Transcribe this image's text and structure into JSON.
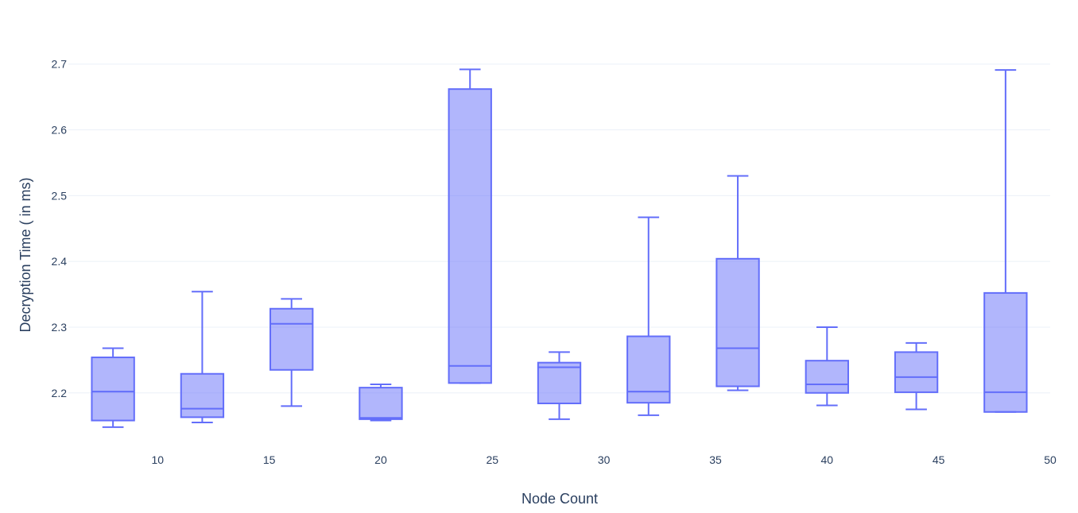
{
  "chart_data": {
    "type": "box",
    "xlabel": "Node Count",
    "ylabel": "Decryption Time ( in ms)",
    "xlim": [
      6,
      50
    ],
    "ylim": [
      2.12,
      2.725
    ],
    "x_ticks": [
      10,
      15,
      20,
      25,
      30,
      35,
      40,
      45,
      50
    ],
    "y_ticks": [
      2.2,
      2.3,
      2.4,
      2.5,
      2.6,
      2.7
    ],
    "grid": true,
    "color": "#636efa",
    "boxes": [
      {
        "x": 8,
        "min": 2.148,
        "q1": 2.158,
        "median": 2.202,
        "q3": 2.254,
        "max": 2.268
      },
      {
        "x": 12,
        "min": 2.155,
        "q1": 2.163,
        "median": 2.176,
        "q3": 2.229,
        "max": 2.354
      },
      {
        "x": 16,
        "min": 2.18,
        "q1": 2.235,
        "median": 2.305,
        "q3": 2.328,
        "max": 2.343
      },
      {
        "x": 20,
        "min": 2.158,
        "q1": 2.16,
        "median": 2.162,
        "q3": 2.208,
        "max": 2.213
      },
      {
        "x": 24,
        "min": 2.215,
        "q1": 2.215,
        "median": 2.241,
        "q3": 2.662,
        "max": 2.692
      },
      {
        "x": 28,
        "min": 2.16,
        "q1": 2.184,
        "median": 2.239,
        "q3": 2.246,
        "max": 2.262
      },
      {
        "x": 32,
        "min": 2.166,
        "q1": 2.185,
        "median": 2.202,
        "q3": 2.286,
        "max": 2.467
      },
      {
        "x": 36,
        "min": 2.204,
        "q1": 2.21,
        "median": 2.268,
        "q3": 2.404,
        "max": 2.53
      },
      {
        "x": 40,
        "min": 2.181,
        "q1": 2.2,
        "median": 2.213,
        "q3": 2.249,
        "max": 2.3
      },
      {
        "x": 44,
        "min": 2.175,
        "q1": 2.201,
        "median": 2.224,
        "q3": 2.262,
        "max": 2.276
      },
      {
        "x": 48,
        "min": 2.171,
        "q1": 2.171,
        "median": 2.201,
        "q3": 2.352,
        "max": 2.691
      }
    ]
  }
}
